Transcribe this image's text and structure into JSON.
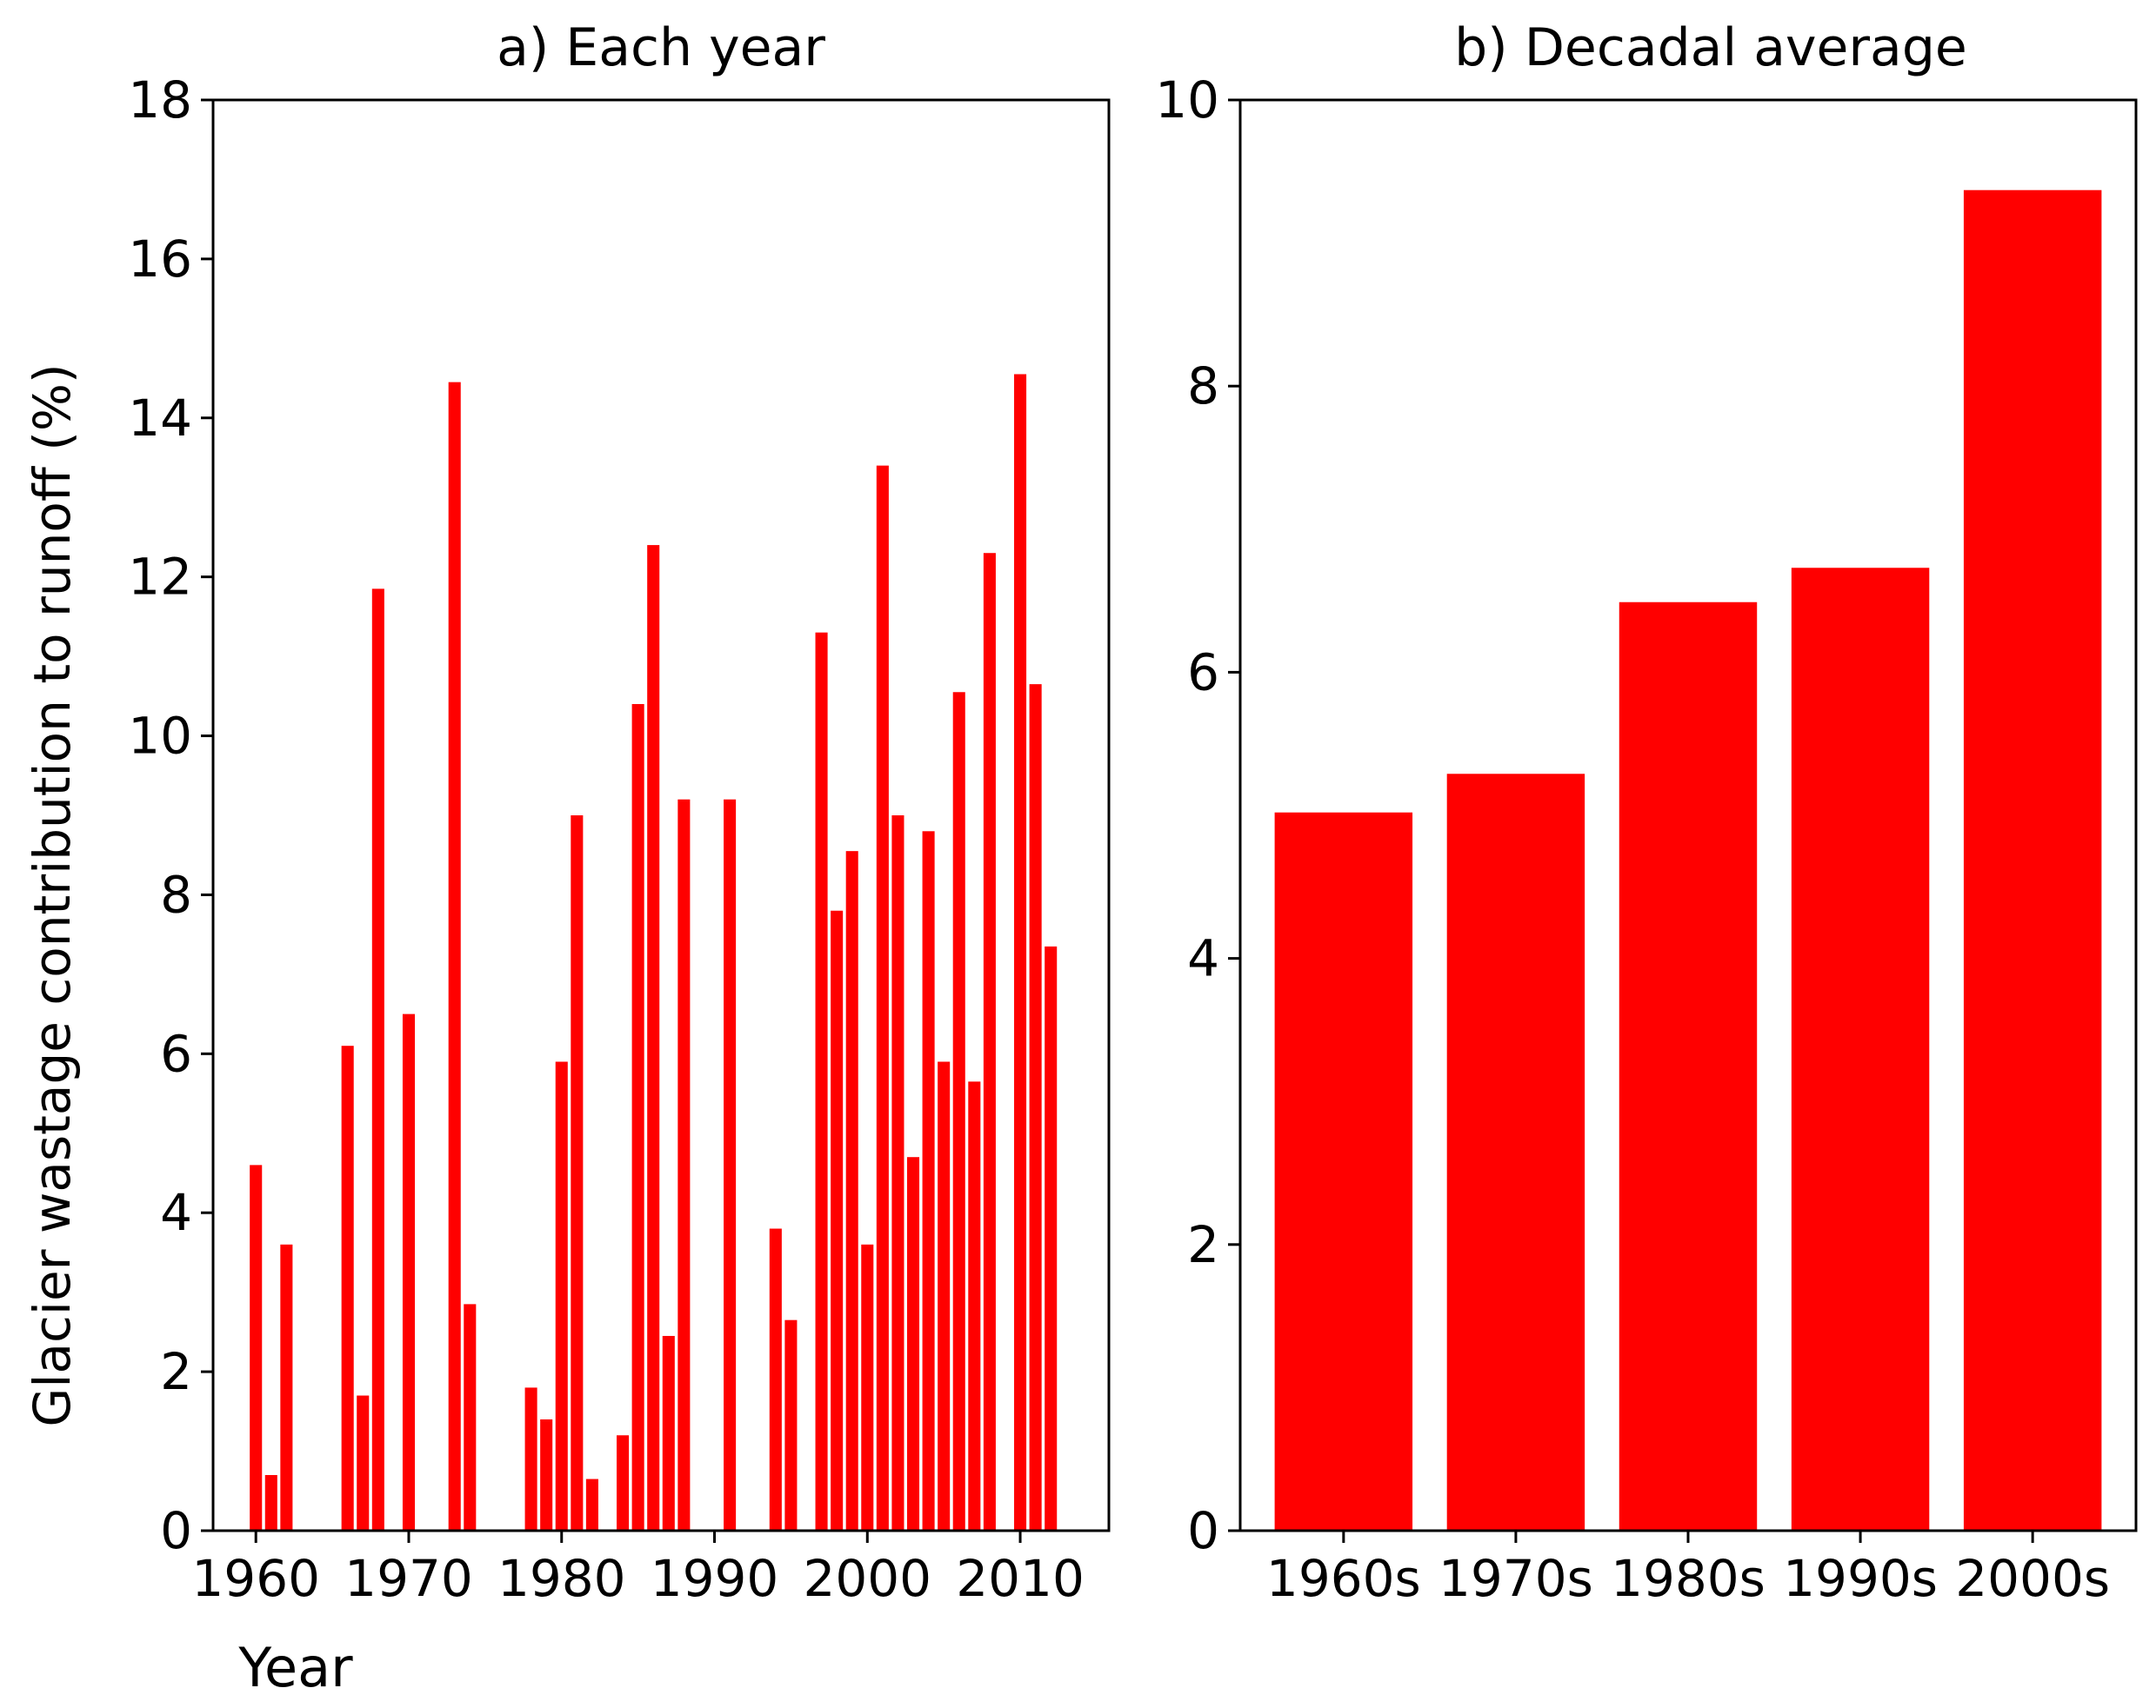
{
  "ylabel": "Glacier wastage contribution to runoff (%)",
  "colors": {
    "bar": "#ff0000",
    "axis": "#000000",
    "background": "#ffffff"
  },
  "chart_data": [
    {
      "type": "bar",
      "title": "a) Each year",
      "xlabel": "Year",
      "ylabel": "Glacier wastage contribution to runoff (%)",
      "xlim": [
        1957.2,
        2015.8
      ],
      "ylim": [
        0,
        18
      ],
      "xticks": [
        1960,
        1970,
        1980,
        1990,
        2000,
        2010
      ],
      "yticks": [
        0,
        2,
        4,
        6,
        8,
        10,
        12,
        14,
        16,
        18
      ],
      "bar_width": 0.8,
      "x": [
        1960,
        1961,
        1962,
        1966,
        1967,
        1968,
        1970,
        1973,
        1974,
        1978,
        1979,
        1980,
        1981,
        1982,
        1984,
        1985,
        1986,
        1987,
        1988,
        1991,
        1994,
        1995,
        1997,
        1998,
        1999,
        2000,
        2001,
        2002,
        2003,
        2004,
        2005,
        2006,
        2007,
        2008,
        2010,
        2011,
        2012
      ],
      "values": [
        4.6,
        0.7,
        3.6,
        6.1,
        1.7,
        11.85,
        6.5,
        14.45,
        2.85,
        1.8,
        1.4,
        5.9,
        9.0,
        0.65,
        1.2,
        10.4,
        12.4,
        2.45,
        9.2,
        9.2,
        3.8,
        2.65,
        11.3,
        7.8,
        8.55,
        3.6,
        13.4,
        9.0,
        4.7,
        8.8,
        5.9,
        10.55,
        5.65,
        12.3,
        14.55,
        10.65,
        7.35
      ]
    },
    {
      "type": "bar",
      "title": "b) Decadal average",
      "ylim": [
        0,
        10
      ],
      "yticks": [
        0,
        2,
        4,
        6,
        8,
        10
      ],
      "categories": [
        "1960s",
        "1970s",
        "1980s",
        "1990s",
        "2000s"
      ],
      "values": [
        5.02,
        5.29,
        6.49,
        6.73,
        9.37
      ]
    }
  ]
}
